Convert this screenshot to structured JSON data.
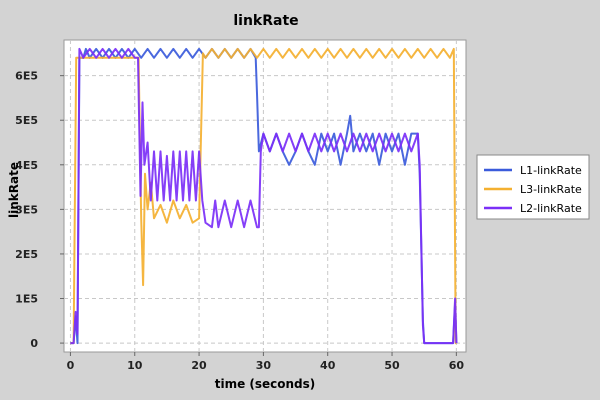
{
  "chart_data": {
    "type": "line",
    "title": "linkRate",
    "xlabel": "time (seconds)",
    "ylabel": "linkRate",
    "xlim": [
      -1,
      61.5
    ],
    "ylim": [
      -20000,
      680000
    ],
    "x_ticks": [
      0,
      10,
      20,
      30,
      40,
      50,
      60
    ],
    "x_tick_labels": [
      "0",
      "10",
      "20",
      "30",
      "40",
      "50",
      "60"
    ],
    "y_ticks": [
      0,
      100000,
      200000,
      300000,
      400000,
      500000,
      600000
    ],
    "y_tick_labels": [
      "0",
      "1E5",
      "2E5",
      "3E5",
      "4E5",
      "5E5",
      "6E5"
    ],
    "grid": true,
    "legend_position": "right",
    "series": [
      {
        "name": "L1-linkRate",
        "color": "#3b5bdb",
        "points": [
          [
            0,
            0
          ],
          [
            0.5,
            0
          ],
          [
            0.8,
            60000
          ],
          [
            1.1,
            0
          ],
          [
            1.4,
            640000
          ],
          [
            2,
            640000
          ],
          [
            2.4,
            660000
          ],
          [
            3,
            640000
          ],
          [
            4,
            660000
          ],
          [
            5,
            640000
          ],
          [
            6,
            660000
          ],
          [
            7,
            640000
          ],
          [
            8,
            660000
          ],
          [
            9,
            640000
          ],
          [
            10,
            660000
          ],
          [
            11,
            640000
          ],
          [
            12,
            660000
          ],
          [
            13,
            640000
          ],
          [
            14,
            660000
          ],
          [
            15,
            640000
          ],
          [
            16,
            660000
          ],
          [
            17,
            640000
          ],
          [
            18,
            660000
          ],
          [
            19,
            640000
          ],
          [
            20,
            660000
          ],
          [
            21,
            640000
          ],
          [
            22,
            660000
          ],
          [
            23,
            640000
          ],
          [
            24,
            660000
          ],
          [
            25,
            640000
          ],
          [
            26,
            660000
          ],
          [
            27,
            640000
          ],
          [
            28,
            660000
          ],
          [
            28.8,
            640000
          ],
          [
            29,
            560000
          ],
          [
            29.3,
            430000
          ],
          [
            30,
            470000
          ],
          [
            31,
            430000
          ],
          [
            32,
            470000
          ],
          [
            33,
            430000
          ],
          [
            34,
            400000
          ],
          [
            35,
            430000
          ],
          [
            36,
            470000
          ],
          [
            37,
            430000
          ],
          [
            38,
            400000
          ],
          [
            39,
            470000
          ],
          [
            40,
            430000
          ],
          [
            41,
            470000
          ],
          [
            42,
            400000
          ],
          [
            43,
            470000
          ],
          [
            43.5,
            510000
          ],
          [
            44,
            430000
          ],
          [
            45,
            470000
          ],
          [
            46,
            430000
          ],
          [
            47,
            470000
          ],
          [
            48,
            400000
          ],
          [
            49,
            470000
          ],
          [
            50,
            430000
          ],
          [
            51,
            470000
          ],
          [
            52,
            400000
          ],
          [
            53,
            470000
          ],
          [
            54,
            470000
          ],
          [
            54.3,
            380000
          ],
          [
            54.8,
            50000
          ],
          [
            55,
            0
          ],
          [
            59.5,
            0
          ],
          [
            59.8,
            90000
          ],
          [
            60,
            0
          ]
        ]
      },
      {
        "name": "L3-linkRate",
        "color": "#f4b030",
        "points": [
          [
            0,
            0
          ],
          [
            0.5,
            0
          ],
          [
            0.9,
            640000
          ],
          [
            2,
            640000
          ],
          [
            10,
            640000
          ],
          [
            10.6,
            640000
          ],
          [
            11,
            280000
          ],
          [
            11.3,
            130000
          ],
          [
            11.6,
            380000
          ],
          [
            12,
            300000
          ],
          [
            12.5,
            360000
          ],
          [
            13,
            280000
          ],
          [
            14,
            310000
          ],
          [
            15,
            270000
          ],
          [
            16,
            320000
          ],
          [
            17,
            280000
          ],
          [
            18,
            310000
          ],
          [
            19,
            270000
          ],
          [
            20,
            280000
          ],
          [
            20.6,
            650000
          ],
          [
            21,
            640000
          ],
          [
            22,
            660000
          ],
          [
            23,
            640000
          ],
          [
            24,
            660000
          ],
          [
            25,
            640000
          ],
          [
            26,
            660000
          ],
          [
            27,
            640000
          ],
          [
            28,
            660000
          ],
          [
            29,
            640000
          ],
          [
            30,
            660000
          ],
          [
            31,
            640000
          ],
          [
            32,
            660000
          ],
          [
            33,
            640000
          ],
          [
            34,
            660000
          ],
          [
            35,
            640000
          ],
          [
            36,
            660000
          ],
          [
            37,
            640000
          ],
          [
            38,
            660000
          ],
          [
            39,
            640000
          ],
          [
            40,
            660000
          ],
          [
            41,
            640000
          ],
          [
            42,
            660000
          ],
          [
            43,
            640000
          ],
          [
            44,
            660000
          ],
          [
            45,
            640000
          ],
          [
            46,
            660000
          ],
          [
            47,
            640000
          ],
          [
            48,
            660000
          ],
          [
            49,
            640000
          ],
          [
            50,
            660000
          ],
          [
            51,
            640000
          ],
          [
            52,
            660000
          ],
          [
            53,
            640000
          ],
          [
            54,
            660000
          ],
          [
            55,
            640000
          ],
          [
            56,
            660000
          ],
          [
            57,
            640000
          ],
          [
            58,
            660000
          ],
          [
            59,
            640000
          ],
          [
            59.6,
            660000
          ],
          [
            59.9,
            0
          ],
          [
            60,
            0
          ]
        ]
      },
      {
        "name": "L2-linkRate",
        "color": "#7b2ff7",
        "points": [
          [
            0,
            0
          ],
          [
            0.5,
            0
          ],
          [
            0.8,
            70000
          ],
          [
            1.1,
            20000
          ],
          [
            1.4,
            660000
          ],
          [
            2,
            640000
          ],
          [
            3,
            660000
          ],
          [
            4,
            640000
          ],
          [
            5,
            660000
          ],
          [
            6,
            640000
          ],
          [
            7,
            660000
          ],
          [
            8,
            640000
          ],
          [
            9,
            660000
          ],
          [
            10,
            640000
          ],
          [
            10.5,
            640000
          ],
          [
            10.9,
            330000
          ],
          [
            11.2,
            540000
          ],
          [
            11.5,
            400000
          ],
          [
            12,
            450000
          ],
          [
            12.5,
            320000
          ],
          [
            13,
            430000
          ],
          [
            13.5,
            320000
          ],
          [
            14,
            430000
          ],
          [
            14.5,
            320000
          ],
          [
            15,
            420000
          ],
          [
            15.5,
            320000
          ],
          [
            16,
            430000
          ],
          [
            16.5,
            320000
          ],
          [
            17,
            430000
          ],
          [
            17.5,
            320000
          ],
          [
            18,
            430000
          ],
          [
            18.5,
            320000
          ],
          [
            19,
            430000
          ],
          [
            19.5,
            320000
          ],
          [
            20,
            430000
          ],
          [
            20.5,
            320000
          ],
          [
            21,
            270000
          ],
          [
            22,
            260000
          ],
          [
            22.5,
            320000
          ],
          [
            23,
            260000
          ],
          [
            24,
            320000
          ],
          [
            25,
            260000
          ],
          [
            26,
            320000
          ],
          [
            27,
            260000
          ],
          [
            28,
            320000
          ],
          [
            29,
            260000
          ],
          [
            29.3,
            260000
          ],
          [
            29.6,
            430000
          ],
          [
            30,
            470000
          ],
          [
            31,
            430000
          ],
          [
            32,
            470000
          ],
          [
            33,
            430000
          ],
          [
            34,
            470000
          ],
          [
            35,
            430000
          ],
          [
            36,
            470000
          ],
          [
            37,
            430000
          ],
          [
            38,
            470000
          ],
          [
            39,
            430000
          ],
          [
            40,
            470000
          ],
          [
            41,
            430000
          ],
          [
            42,
            470000
          ],
          [
            43,
            430000
          ],
          [
            44,
            470000
          ],
          [
            45,
            430000
          ],
          [
            46,
            470000
          ],
          [
            47,
            430000
          ],
          [
            48,
            470000
          ],
          [
            49,
            430000
          ],
          [
            50,
            470000
          ],
          [
            51,
            430000
          ],
          [
            52,
            470000
          ],
          [
            53,
            430000
          ],
          [
            54,
            470000
          ],
          [
            54.3,
            400000
          ],
          [
            54.8,
            40000
          ],
          [
            55,
            0
          ],
          [
            59.5,
            0
          ],
          [
            59.8,
            100000
          ],
          [
            60,
            0
          ]
        ]
      }
    ]
  }
}
